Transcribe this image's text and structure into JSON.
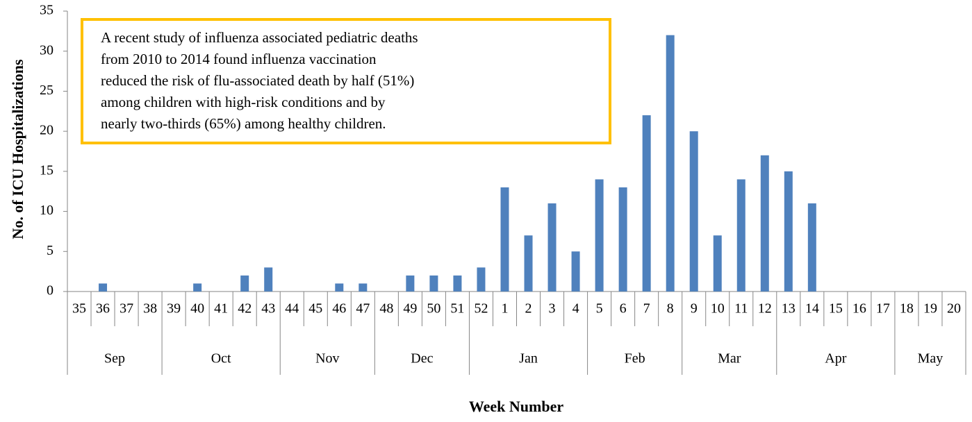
{
  "chart_data": {
    "type": "bar",
    "y_label": "No. of ICU Hospitalizations",
    "x_label": "Week Number",
    "annotation": [
      "A recent study of influenza associated pediatric deaths",
      "from 2010 to 2014 found influenza vaccination",
      "reduced the risk of flu-associated death by half (51%)",
      "among children with high-risk conditions and by",
      "nearly two-thirds (65%) among healthy children."
    ],
    "groups": [
      {
        "label": "Sep",
        "categories": [
          "35",
          "36",
          "37",
          "38"
        ]
      },
      {
        "label": "Oct",
        "categories": [
          "39",
          "40",
          "41",
          "42",
          "43"
        ]
      },
      {
        "label": "Nov",
        "categories": [
          "44",
          "45",
          "46",
          "47"
        ]
      },
      {
        "label": "Dec",
        "categories": [
          "48",
          "49",
          "50",
          "51"
        ]
      },
      {
        "label": "Jan",
        "categories": [
          "52",
          "1",
          "2",
          "3",
          "4"
        ]
      },
      {
        "label": "Feb",
        "categories": [
          "5",
          "6",
          "7",
          "8"
        ]
      },
      {
        "label": "Mar",
        "categories": [
          "9",
          "10",
          "11",
          "12"
        ]
      },
      {
        "label": "Apr",
        "categories": [
          "13",
          "14",
          "15",
          "16",
          "17"
        ]
      },
      {
        "label": "May",
        "categories": [
          "18",
          "19",
          "20"
        ]
      }
    ],
    "values": [
      0,
      1,
      0,
      0,
      0,
      1,
      0,
      2,
      3,
      0,
      0,
      1,
      1,
      0,
      2,
      2,
      2,
      3,
      13,
      7,
      11,
      5,
      14,
      13,
      22,
      32,
      20,
      7,
      14,
      17,
      15,
      11,
      0,
      0,
      0,
      0,
      0,
      0
    ],
    "color": "#4f81bd",
    "ylim": [
      0,
      35
    ],
    "yticks": [
      0,
      5,
      10,
      15,
      20,
      25,
      30,
      35
    ]
  }
}
